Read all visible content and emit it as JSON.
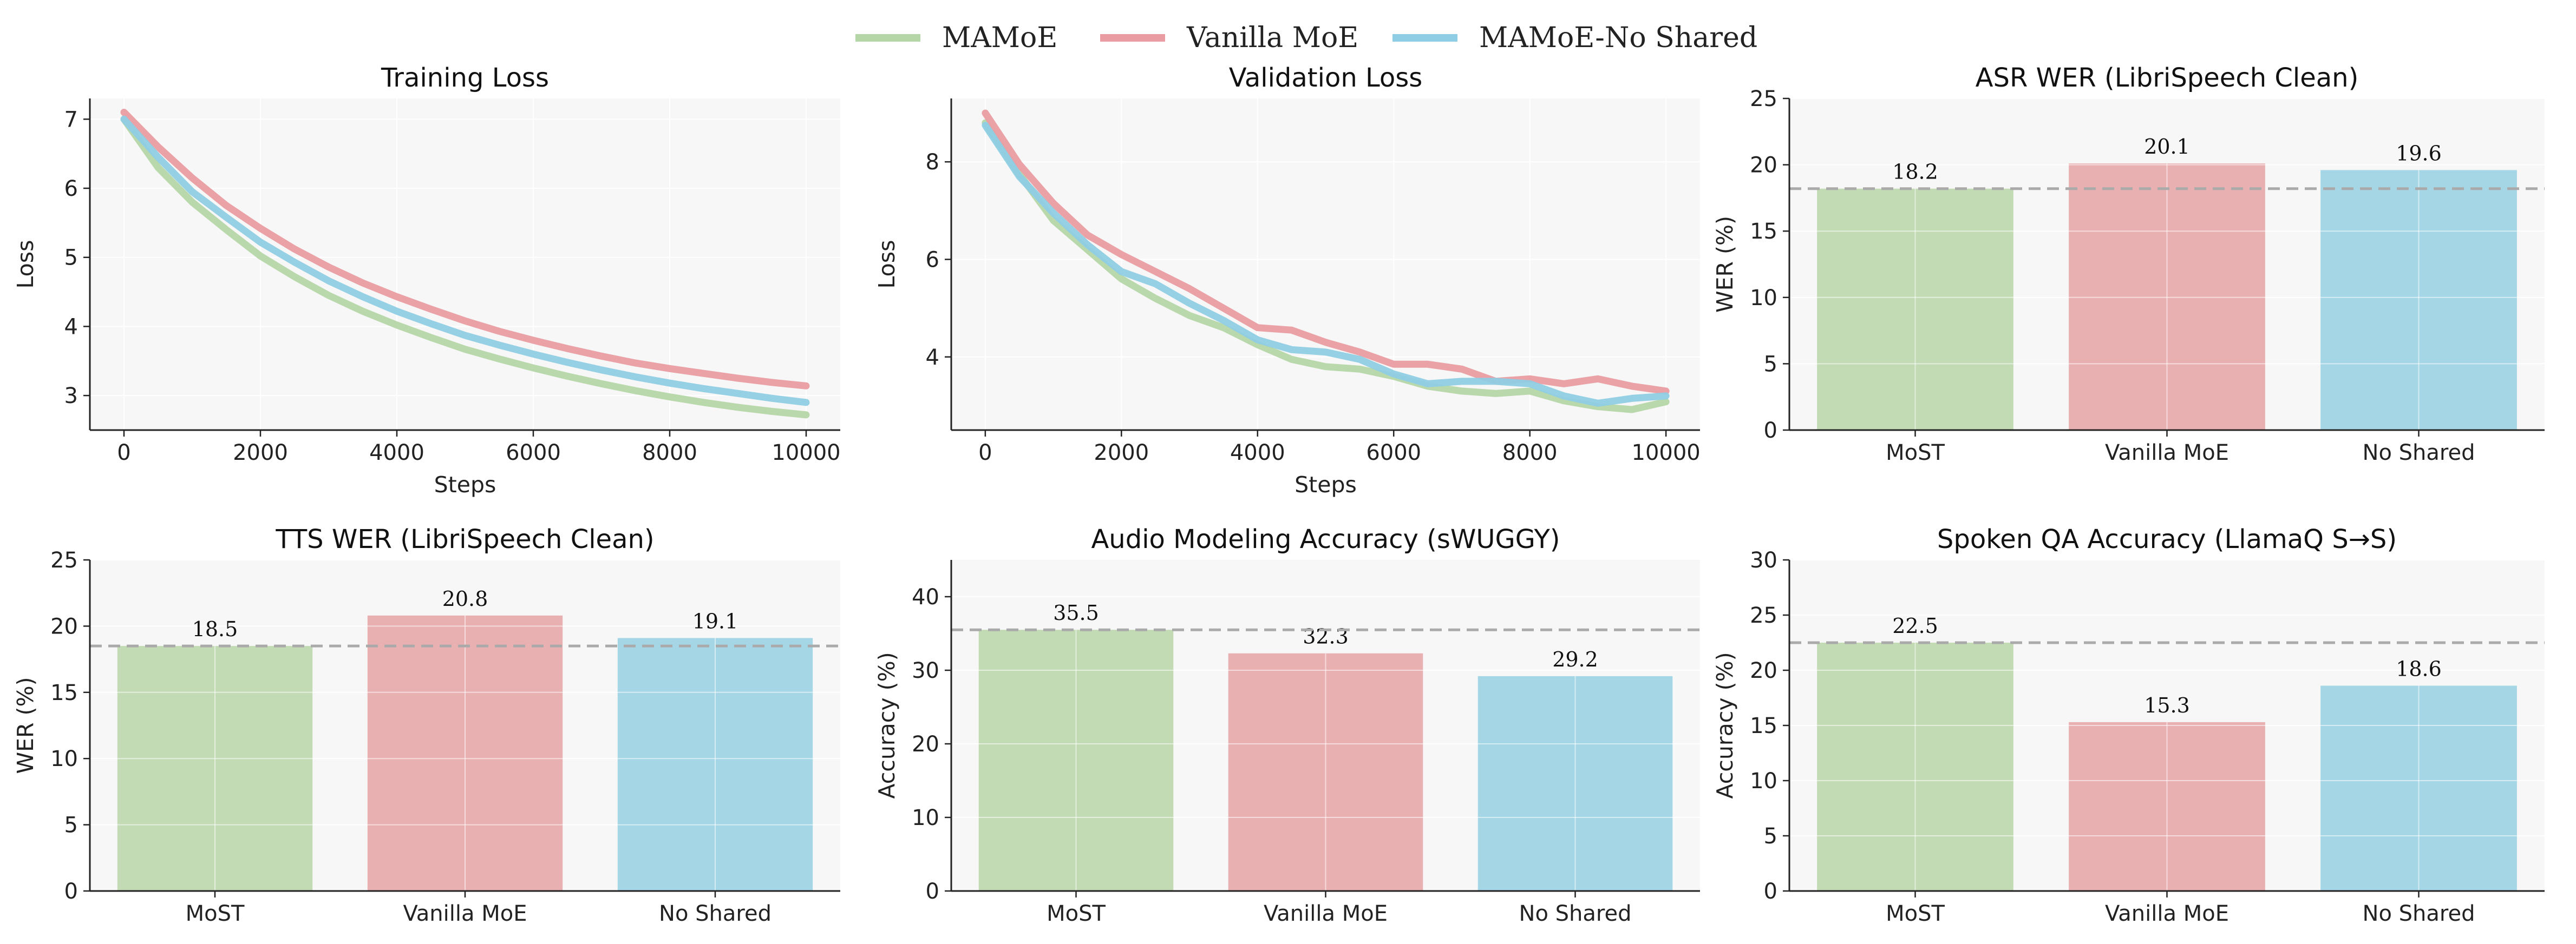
{
  "legend": {
    "items": [
      {
        "label": "MAMoE",
        "color": "#b5d6a7"
      },
      {
        "label": "Vanilla MoE",
        "color": "#e99da2"
      },
      {
        "label": "MAMoE-No Shared",
        "color": "#8fcde4"
      }
    ]
  },
  "chart_data": [
    {
      "id": "training-loss",
      "type": "line",
      "title": "Training Loss",
      "xlabel": "Steps",
      "ylabel": "Loss",
      "xlim": [
        -500,
        10500
      ],
      "ylim": [
        2.5,
        7.3
      ],
      "xticks": [
        0,
        2000,
        4000,
        6000,
        8000,
        10000
      ],
      "yticks": [
        3,
        4,
        5,
        6,
        7
      ],
      "grid": true,
      "series": [
        {
          "name": "MAMoE",
          "color": "#b5d6a7",
          "x": [
            0,
            500,
            1000,
            1500,
            2000,
            2500,
            3000,
            3500,
            4000,
            4500,
            5000,
            5500,
            6000,
            6500,
            7000,
            7500,
            8000,
            8500,
            9000,
            9500,
            10000
          ],
          "y": [
            7.0,
            6.3,
            5.8,
            5.4,
            5.02,
            4.72,
            4.45,
            4.22,
            4.02,
            3.84,
            3.67,
            3.53,
            3.4,
            3.28,
            3.17,
            3.07,
            2.98,
            2.9,
            2.83,
            2.77,
            2.72
          ]
        },
        {
          "name": "Vanilla MoE",
          "color": "#e99da2",
          "x": [
            0,
            500,
            1000,
            1500,
            2000,
            2500,
            3000,
            3500,
            4000,
            4500,
            5000,
            5500,
            6000,
            6500,
            7000,
            7500,
            8000,
            8500,
            9000,
            9500,
            10000
          ],
          "y": [
            7.1,
            6.6,
            6.15,
            5.75,
            5.42,
            5.12,
            4.86,
            4.63,
            4.43,
            4.25,
            4.08,
            3.93,
            3.8,
            3.68,
            3.57,
            3.47,
            3.39,
            3.32,
            3.25,
            3.19,
            3.14
          ]
        },
        {
          "name": "MAMoE-No Shared",
          "color": "#8fcde4",
          "x": [
            0,
            500,
            1000,
            1500,
            2000,
            2500,
            3000,
            3500,
            4000,
            4500,
            5000,
            5500,
            6000,
            6500,
            7000,
            7500,
            8000,
            8500,
            9000,
            9500,
            10000
          ],
          "y": [
            7.0,
            6.45,
            5.95,
            5.58,
            5.22,
            4.93,
            4.66,
            4.43,
            4.22,
            4.04,
            3.87,
            3.73,
            3.6,
            3.48,
            3.37,
            3.27,
            3.18,
            3.1,
            3.03,
            2.96,
            2.9
          ]
        }
      ]
    },
    {
      "id": "validation-loss",
      "type": "line",
      "title": "Validation Loss",
      "xlabel": "Steps",
      "ylabel": "Loss",
      "xlim": [
        -500,
        10500
      ],
      "ylim": [
        2.5,
        9.3
      ],
      "xticks": [
        0,
        2000,
        4000,
        6000,
        8000,
        10000
      ],
      "yticks": [
        4,
        6,
        8
      ],
      "grid": true,
      "series": [
        {
          "name": "MAMoE",
          "color": "#b5d6a7",
          "x": [
            0,
            500,
            1000,
            1500,
            2000,
            2500,
            3000,
            3500,
            4000,
            4500,
            5000,
            5500,
            6000,
            6500,
            7000,
            7500,
            8000,
            8500,
            9000,
            9500,
            10000
          ],
          "y": [
            8.8,
            7.75,
            6.8,
            6.2,
            5.6,
            5.2,
            4.85,
            4.6,
            4.25,
            3.95,
            3.8,
            3.75,
            3.6,
            3.4,
            3.3,
            3.25,
            3.3,
            3.1,
            2.98,
            2.92,
            3.08
          ]
        },
        {
          "name": "Vanilla MoE",
          "color": "#e99da2",
          "x": [
            0,
            500,
            1000,
            1500,
            2000,
            2500,
            3000,
            3500,
            4000,
            4500,
            5000,
            5500,
            6000,
            6500,
            7000,
            7500,
            8000,
            8500,
            9000,
            9500,
            10000
          ],
          "y": [
            9.0,
            7.95,
            7.15,
            6.5,
            6.1,
            5.75,
            5.4,
            5.0,
            4.6,
            4.55,
            4.3,
            4.1,
            3.85,
            3.85,
            3.75,
            3.5,
            3.55,
            3.45,
            3.55,
            3.4,
            3.3
          ]
        },
        {
          "name": "MAMoE-No Shared",
          "color": "#8fcde4",
          "x": [
            0,
            500,
            1000,
            1500,
            2000,
            2500,
            3000,
            3500,
            4000,
            4500,
            5000,
            5500,
            6000,
            6500,
            7000,
            7500,
            8000,
            8500,
            9000,
            9500,
            10000
          ],
          "y": [
            8.75,
            7.7,
            6.95,
            6.3,
            5.75,
            5.5,
            5.1,
            4.75,
            4.35,
            4.15,
            4.1,
            3.95,
            3.65,
            3.45,
            3.5,
            3.5,
            3.45,
            3.2,
            3.05,
            3.15,
            3.2
          ]
        }
      ]
    },
    {
      "id": "asr-wer",
      "type": "bar",
      "title": "ASR WER (LibriSpeech Clean)",
      "ylabel": "WER (%)",
      "categories": [
        "MoST",
        "Vanilla MoE",
        "No Shared"
      ],
      "values": [
        18.2,
        20.1,
        19.6
      ],
      "labels": [
        "18.2",
        "20.1",
        "19.6"
      ],
      "colors": [
        "#c2dbb4",
        "#e9b0b2",
        "#a4d6e6"
      ],
      "ylim": [
        0,
        25
      ],
      "yticks": [
        0,
        5,
        10,
        15,
        20,
        25
      ],
      "reference_line": 18.2,
      "grid": true
    },
    {
      "id": "tts-wer",
      "type": "bar",
      "title": "TTS WER (LibriSpeech Clean)",
      "ylabel": "WER (%)",
      "categories": [
        "MoST",
        "Vanilla MoE",
        "No Shared"
      ],
      "values": [
        18.5,
        20.8,
        19.1
      ],
      "labels": [
        "18.5",
        "20.8",
        "19.1"
      ],
      "colors": [
        "#c2dbb4",
        "#e9b0b2",
        "#a4d6e6"
      ],
      "ylim": [
        0,
        25
      ],
      "yticks": [
        0,
        5,
        10,
        15,
        20,
        25
      ],
      "reference_line": 18.5,
      "grid": true
    },
    {
      "id": "audio-accuracy",
      "type": "bar",
      "title": "Audio Modeling Accuracy (sWUGGY)",
      "ylabel": "Accuracy (%)",
      "categories": [
        "MoST",
        "Vanilla MoE",
        "No Shared"
      ],
      "values": [
        35.5,
        32.3,
        29.2
      ],
      "labels": [
        "35.5",
        "32.3",
        "29.2"
      ],
      "colors": [
        "#c2dbb4",
        "#e9b0b2",
        "#a4d6e6"
      ],
      "ylim": [
        0,
        45
      ],
      "yticks": [
        0,
        10,
        20,
        30,
        40
      ],
      "reference_line": 35.5,
      "grid": true
    },
    {
      "id": "spoken-qa",
      "type": "bar",
      "title": "Spoken QA Accuracy (LlamaQ S→S)",
      "ylabel": "Accuracy (%)",
      "categories": [
        "MoST",
        "Vanilla MoE",
        "No Shared"
      ],
      "values": [
        22.5,
        15.3,
        18.6
      ],
      "labels": [
        "22.5",
        "15.3",
        "18.6"
      ],
      "colors": [
        "#c2dbb4",
        "#e9b0b2",
        "#a4d6e6"
      ],
      "ylim": [
        0,
        30
      ],
      "yticks": [
        0,
        5,
        10,
        15,
        20,
        25,
        30
      ],
      "reference_line": 22.5,
      "grid": true
    }
  ]
}
